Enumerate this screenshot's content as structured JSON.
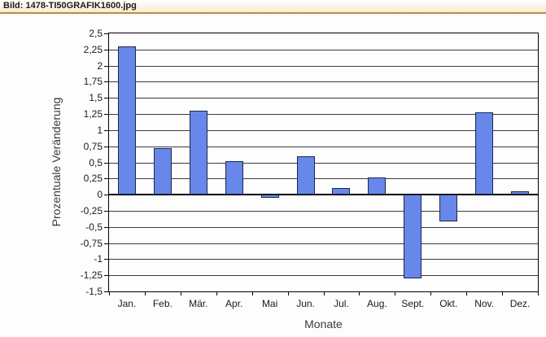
{
  "window": {
    "title": "Bild: 1478-TI50GRAFIK1600.jpg"
  },
  "colors": {
    "titlebar_bg_top": "#ffffff",
    "titlebar_bg_bottom": "#f6ecce",
    "titlebar_border": "#bf8b45",
    "bar_fill": "#6787ea",
    "bar_border": "#1c2847",
    "gridline": "#3c3c3c",
    "axis": "#000000",
    "chart_bg": "#fdfdfd"
  },
  "chart_data": {
    "type": "bar",
    "title": "",
    "xlabel": "Monate",
    "ylabel": "Prozentuale Veränderung",
    "categories": [
      "Jan.",
      "Feb.",
      "Mär.",
      "Apr.",
      "Mai",
      "Jun.",
      "Jul.",
      "Aug.",
      "Sept.",
      "Okt.",
      "Nov.",
      "Dez."
    ],
    "values": [
      2.3,
      0.72,
      1.3,
      0.52,
      -0.05,
      0.6,
      0.1,
      0.27,
      -1.3,
      -0.42,
      1.27,
      0.05
    ],
    "ylim": [
      -1.5,
      2.5
    ],
    "ytick_step": 0.25,
    "ytick_labels": [
      "2,5",
      "2,25",
      "2",
      "1,75",
      "1,5",
      "1,25",
      "1",
      "0,75",
      "0,5",
      "0,25",
      "0",
      "-0,25",
      "-0,5",
      "-0,75",
      "-1",
      "-1,25",
      "-1,5"
    ],
    "grid": true,
    "legend": false,
    "decimal_separator": ","
  }
}
